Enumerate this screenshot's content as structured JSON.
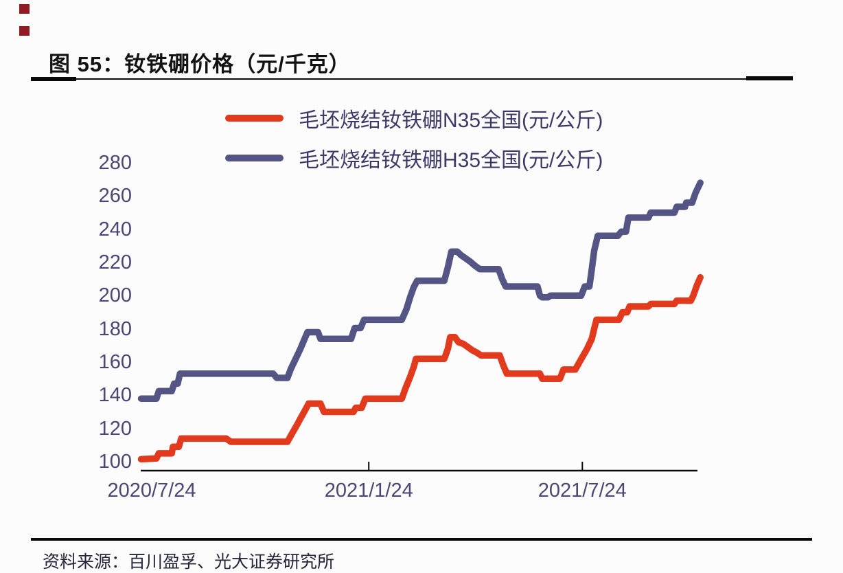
{
  "header": {
    "title": "图 55：钕铁硼价格（元/千克）"
  },
  "decorations": {
    "corner_square_color": "#8e1c20"
  },
  "legend": {
    "items": [
      {
        "label": "毛坯烧结钕铁硼N35全国(元/公斤)",
        "color": "#e23a1d"
      },
      {
        "label": "毛坯烧结钕铁硼H35全国(元/公斤)",
        "color": "#545585"
      }
    ]
  },
  "footer": {
    "source": "资料来源：百川盈孚、光大证券研究所"
  },
  "chart_data": {
    "type": "line",
    "title": "钕铁硼价格（元/千克）",
    "xlabel": "",
    "ylabel": "",
    "grid": false,
    "legend_position": "top",
    "axis_text_color": "#4b4673",
    "axis_line_color": "#0a0a0a",
    "x_unit": "days since 2020-07-24",
    "xlim": [
      -10,
      470
    ],
    "ylim": [
      100,
      280
    ],
    "y_ticks": [
      100,
      120,
      140,
      160,
      180,
      200,
      220,
      240,
      260,
      280
    ],
    "x_ticks": [
      {
        "t": 0,
        "label": "2020/7/24"
      },
      {
        "t": 184,
        "label": "2021/1/24"
      },
      {
        "t": 365,
        "label": "2021/7/24"
      }
    ],
    "series": [
      {
        "name": "毛坯烧结钕铁硼N35全国(元/公斤)",
        "color": "#e23a1d",
        "points": [
          [
            -9,
            101.5
          ],
          [
            4,
            102
          ],
          [
            6,
            105
          ],
          [
            17,
            105
          ],
          [
            18,
            109
          ],
          [
            23,
            109
          ],
          [
            25,
            114
          ],
          [
            63,
            114
          ],
          [
            67,
            112
          ],
          [
            115,
            112
          ],
          [
            119,
            117
          ],
          [
            123,
            122
          ],
          [
            126,
            126
          ],
          [
            130,
            131
          ],
          [
            133,
            135
          ],
          [
            143,
            135
          ],
          [
            146,
            130
          ],
          [
            171,
            130
          ],
          [
            173,
            132.5
          ],
          [
            178,
            132.5
          ],
          [
            181,
            138
          ],
          [
            212,
            138
          ],
          [
            215,
            144
          ],
          [
            219,
            151
          ],
          [
            222,
            157
          ],
          [
            224,
            162
          ],
          [
            248,
            162
          ],
          [
            251,
            168
          ],
          [
            253,
            175
          ],
          [
            257,
            175
          ],
          [
            260,
            172
          ],
          [
            264,
            171
          ],
          [
            268,
            169
          ],
          [
            272,
            167
          ],
          [
            276,
            165.5
          ],
          [
            279,
            164
          ],
          [
            295,
            164
          ],
          [
            298,
            158
          ],
          [
            301,
            153
          ],
          [
            329,
            153
          ],
          [
            331,
            150
          ],
          [
            346,
            150
          ],
          [
            349,
            155.5
          ],
          [
            359,
            155.5
          ],
          [
            365,
            163
          ],
          [
            369,
            168
          ],
          [
            373,
            174
          ],
          [
            375,
            180
          ],
          [
            377,
            185.5
          ],
          [
            396,
            185.5
          ],
          [
            399,
            190
          ],
          [
            403,
            190
          ],
          [
            405,
            193.5
          ],
          [
            421,
            193.5
          ],
          [
            423,
            195
          ],
          [
            443,
            195
          ],
          [
            445,
            197
          ],
          [
            457,
            197
          ],
          [
            459,
            200
          ],
          [
            462,
            206
          ],
          [
            465,
            211
          ]
        ]
      },
      {
        "name": "毛坯烧结钕铁硼H35全国(元/公斤)",
        "color": "#545585",
        "points": [
          [
            -9,
            138
          ],
          [
            4,
            138
          ],
          [
            6,
            142.5
          ],
          [
            17,
            142.5
          ],
          [
            19,
            147
          ],
          [
            22,
            147
          ],
          [
            24,
            153
          ],
          [
            103,
            153
          ],
          [
            106,
            150.5
          ],
          [
            115,
            150.5
          ],
          [
            118,
            156
          ],
          [
            122,
            162
          ],
          [
            126,
            168
          ],
          [
            129,
            173
          ],
          [
            132,
            178
          ],
          [
            141,
            178
          ],
          [
            143,
            174
          ],
          [
            169,
            174
          ],
          [
            172,
            180.5
          ],
          [
            177,
            180.5
          ],
          [
            180,
            185.5
          ],
          [
            212,
            185.5
          ],
          [
            216,
            192
          ],
          [
            219,
            199
          ],
          [
            222,
            205
          ],
          [
            225,
            209
          ],
          [
            248,
            209
          ],
          [
            251,
            217
          ],
          [
            254,
            226.5
          ],
          [
            259,
            226.5
          ],
          [
            262,
            224.5
          ],
          [
            266,
            222.5
          ],
          [
            270,
            220.5
          ],
          [
            274,
            218
          ],
          [
            278,
            216
          ],
          [
            294,
            216
          ],
          [
            297,
            210
          ],
          [
            300,
            205.5
          ],
          [
            327,
            205.5
          ],
          [
            329,
            200
          ],
          [
            331,
            199
          ],
          [
            336,
            199
          ],
          [
            338,
            200
          ],
          [
            364,
            200
          ],
          [
            367,
            205.5
          ],
          [
            371,
            205.5
          ],
          [
            373,
            216
          ],
          [
            375,
            227
          ],
          [
            378,
            236
          ],
          [
            395,
            236
          ],
          [
            398,
            238.5
          ],
          [
            402,
            238.5
          ],
          [
            404,
            247
          ],
          [
            421,
            247
          ],
          [
            423,
            250
          ],
          [
            443,
            250
          ],
          [
            445,
            253.5
          ],
          [
            452,
            253.5
          ],
          [
            453,
            256
          ],
          [
            458,
            256
          ],
          [
            461,
            262
          ],
          [
            465,
            268
          ]
        ]
      }
    ]
  }
}
